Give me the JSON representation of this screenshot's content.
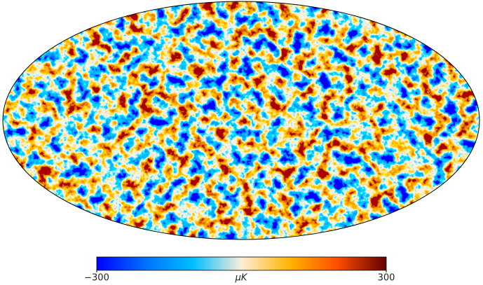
{
  "colorbar": {
    "range": [
      -300,
      300
    ],
    "ticks": [
      {
        "value": -300,
        "label": "−300"
      },
      300
    ],
    "unit": "μK",
    "colors": [
      "#0000ff",
      "#0070ff",
      "#00bfff",
      "#ffedd9",
      "#ffb400",
      "#ff4b00",
      "#640000"
    ]
  }
}
